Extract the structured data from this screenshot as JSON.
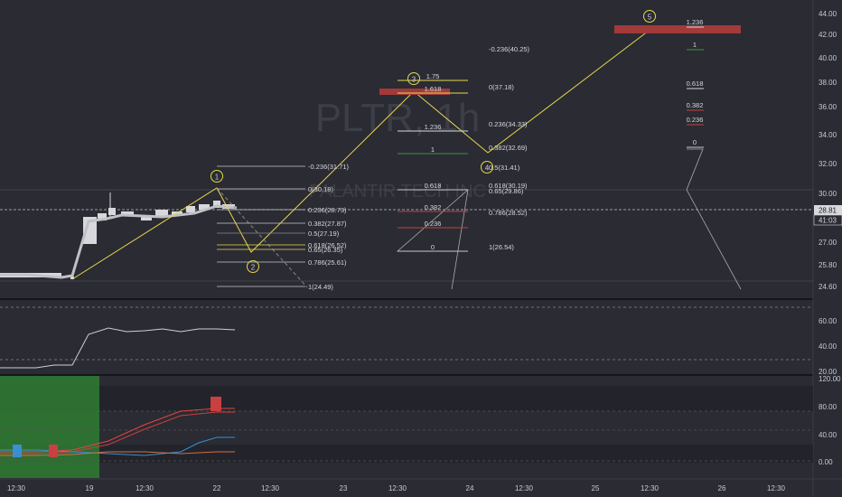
{
  "watermark": {
    "symbol": "PLTR, 1h",
    "name": "PALANTIR TECH INC"
  },
  "price_axis": {
    "ticks": [
      "44.00",
      "42.00",
      "40.00",
      "38.00",
      "36.00",
      "34.00",
      "32.00",
      "30.00",
      "27.00",
      "25.80",
      "24.60"
    ],
    "current_price": "28.81",
    "countdown": "41:03"
  },
  "rsi_axis": {
    "ticks": [
      "60.00",
      "40.00",
      "20.00"
    ]
  },
  "dmi_axis": {
    "ticks": [
      "120.00",
      "80.00",
      "40.00",
      "0.00"
    ]
  },
  "time_axis": {
    "ticks": [
      "12:30",
      "19",
      "12:30",
      "22",
      "12:30",
      "23",
      "12:30",
      "24",
      "12:30",
      "25",
      "12:30",
      "26",
      "12:30"
    ]
  },
  "waves": [
    "1",
    "2",
    "3",
    "4",
    "5"
  ],
  "fib_sets": {
    "a": [
      "-0.236(31.71)",
      "0(30.18)",
      "0.236(28.73)",
      "0.382(27.87)",
      "0.5(27.19)",
      "0.618(26.52)",
      "0.65(26.35)",
      "0.786(25.61)",
      "1(24.49)"
    ],
    "b": [
      "1.75",
      "1.618",
      "1.236",
      "1",
      "0.618",
      "0.382",
      "0.236",
      "0"
    ],
    "c": [
      "-0.236(40.25)",
      "0(37.18)",
      "0.236(34.33)",
      "0.382(32.69)",
      "0.5(31.41)",
      "0.618(30.19)",
      "0.65(29.86)",
      "0.786(28.52)",
      "1(26.54)"
    ],
    "d": [
      "1.236",
      "1",
      "0.618",
      "0.382",
      "0.236",
      "0"
    ]
  },
  "colors": {
    "background": "#2a2b33",
    "wave": "#e8d84a",
    "fib_line": "#c8c8cc",
    "red_zone": "#a33a3a",
    "green_zone": "#2e7d32"
  }
}
